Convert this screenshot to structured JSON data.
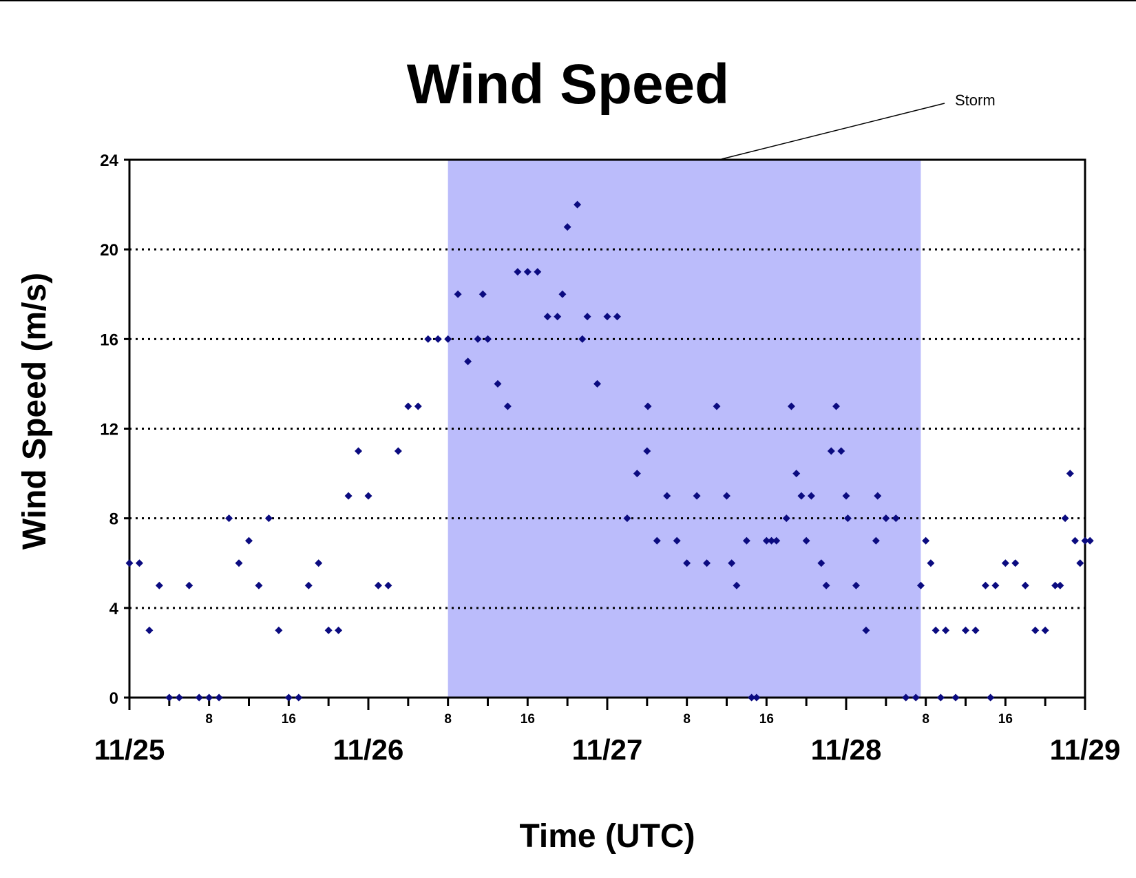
{
  "chart_data": {
    "type": "scatter",
    "title": "Wind Speed",
    "xlabel": "Time (UTC)",
    "ylabel": "Wind Speed (m/s)",
    "x_unit": "hour",
    "xlim": [
      "11/25 00:00",
      "11/29 00:00"
    ],
    "ylim": [
      0,
      24
    ],
    "yticks": [
      0,
      4,
      8,
      12,
      16,
      20,
      24
    ],
    "grid": "dotted horizontal",
    "day_ticks": [
      {
        "label": "11/25",
        "hour": "11/25 00:00"
      },
      {
        "label": "11/26",
        "hour": "11/26 00:00"
      },
      {
        "label": "11/27",
        "hour": "11/27 00:00"
      },
      {
        "label": "11/28",
        "hour": "11/28 00:00"
      },
      {
        "label": "11/29",
        "hour": "11/29 00:00"
      }
    ],
    "hour_ticks": [
      {
        "label": "8",
        "hour": "11/25 08:00"
      },
      {
        "label": "16",
        "hour": "11/25 16:00"
      },
      {
        "label": "8",
        "hour": "11/26 08:00"
      },
      {
        "label": "16",
        "hour": "11/26 16:00"
      },
      {
        "label": "8",
        "hour": "11/27 08:00"
      },
      {
        "label": "16",
        "hour": "11/27 16:00"
      },
      {
        "label": "8",
        "hour": "11/28 08:00"
      },
      {
        "label": "16",
        "hour": "11/28 16:00"
      }
    ],
    "storm_period": {
      "label": "Storm",
      "start": "11/26 08:00",
      "end": "11/28 07:30",
      "color": "#bbbcfb"
    },
    "marker_color": "#0b0b80",
    "series": [
      {
        "points": [
          [
            "11/25 00:00",
            6
          ],
          [
            "11/25 01:00",
            6
          ],
          [
            "11/25 02:00",
            3
          ],
          [
            "11/25 03:00",
            5
          ],
          [
            "11/25 04:00",
            0
          ],
          [
            "11/25 05:00",
            0
          ],
          [
            "11/25 06:00",
            5
          ],
          [
            "11/25 07:00",
            0
          ],
          [
            "11/25 08:00",
            0
          ],
          [
            "11/25 09:00",
            0
          ],
          [
            "11/25 10:00",
            8
          ],
          [
            "11/25 11:00",
            6
          ],
          [
            "11/25 12:00",
            7
          ],
          [
            "11/25 13:00",
            5
          ],
          [
            "11/25 14:00",
            8
          ],
          [
            "11/25 15:00",
            3
          ],
          [
            "11/25 16:00",
            0
          ],
          [
            "11/25 17:00",
            0
          ],
          [
            "11/25 18:00",
            5
          ],
          [
            "11/25 19:00",
            6
          ],
          [
            "11/25 20:00",
            3
          ],
          [
            "11/25 21:00",
            3
          ],
          [
            "11/25 22:00",
            9
          ],
          [
            "11/25 23:00",
            11
          ],
          [
            "11/26 00:00",
            9
          ],
          [
            "11/26 01:00",
            5
          ],
          [
            "11/26 02:00",
            5
          ],
          [
            "11/26 03:00",
            11
          ],
          [
            "11/26 04:00",
            13
          ],
          [
            "11/26 05:00",
            13
          ],
          [
            "11/26 06:00",
            16
          ],
          [
            "11/26 07:00",
            16
          ],
          [
            "11/26 08:00",
            16
          ],
          [
            "11/26 09:00",
            18
          ],
          [
            "11/26 10:00",
            15
          ],
          [
            "11/26 11:00",
            16
          ],
          [
            "11/26 11:30",
            18
          ],
          [
            "11/26 12:00",
            16
          ],
          [
            "11/26 13:00",
            14
          ],
          [
            "11/26 14:00",
            13
          ],
          [
            "11/26 15:00",
            19
          ],
          [
            "11/26 16:00",
            19
          ],
          [
            "11/26 17:00",
            19
          ],
          [
            "11/26 18:00",
            17
          ],
          [
            "11/26 19:00",
            17
          ],
          [
            "11/26 19:30",
            18
          ],
          [
            "11/26 20:00",
            21
          ],
          [
            "11/26 21:00",
            22
          ],
          [
            "11/26 21:30",
            16
          ],
          [
            "11/26 22:00",
            17
          ],
          [
            "11/26 23:00",
            14
          ],
          [
            "11/27 00:00",
            17
          ],
          [
            "11/27 01:00",
            17
          ],
          [
            "11/27 02:00",
            8
          ],
          [
            "11/27 03:00",
            10
          ],
          [
            "11/27 04:00",
            11
          ],
          [
            "11/27 04:05",
            13
          ],
          [
            "11/27 05:00",
            7
          ],
          [
            "11/27 06:00",
            9
          ],
          [
            "11/27 07:00",
            7
          ],
          [
            "11/27 08:00",
            6
          ],
          [
            "11/27 09:00",
            9
          ],
          [
            "11/27 10:00",
            6
          ],
          [
            "11/27 11:00",
            13
          ],
          [
            "11/27 12:00",
            9
          ],
          [
            "11/27 12:30",
            6
          ],
          [
            "11/27 13:00",
            5
          ],
          [
            "11/27 14:00",
            7
          ],
          [
            "11/27 14:30",
            0
          ],
          [
            "11/27 15:00",
            0
          ],
          [
            "11/27 16:00",
            7
          ],
          [
            "11/27 16:30",
            7
          ],
          [
            "11/27 17:00",
            7
          ],
          [
            "11/27 18:00",
            8
          ],
          [
            "11/27 18:30",
            13
          ],
          [
            "11/27 19:00",
            10
          ],
          [
            "11/27 19:30",
            9
          ],
          [
            "11/27 20:00",
            7
          ],
          [
            "11/27 20:30",
            9
          ],
          [
            "11/27 21:30",
            6
          ],
          [
            "11/27 22:00",
            5
          ],
          [
            "11/27 22:30",
            11
          ],
          [
            "11/27 23:00",
            13
          ],
          [
            "11/27 23:30",
            11
          ],
          [
            "11/28 00:00",
            9
          ],
          [
            "11/28 00:10",
            8
          ],
          [
            "11/28 01:00",
            5
          ],
          [
            "11/28 02:00",
            3
          ],
          [
            "11/28 03:00",
            7
          ],
          [
            "11/28 03:10",
            9
          ],
          [
            "11/28 04:00",
            8
          ],
          [
            "11/28 05:00",
            8
          ],
          [
            "11/28 06:00",
            0
          ],
          [
            "11/28 07:00",
            0
          ],
          [
            "11/28 07:30",
            5
          ],
          [
            "11/28 08:00",
            7
          ],
          [
            "11/28 08:30",
            6
          ],
          [
            "11/28 09:00",
            3
          ],
          [
            "11/28 09:30",
            0
          ],
          [
            "11/28 10:00",
            3
          ],
          [
            "11/28 11:00",
            0
          ],
          [
            "11/28 12:00",
            3
          ],
          [
            "11/28 13:00",
            3
          ],
          [
            "11/28 14:00",
            5
          ],
          [
            "11/28 14:30",
            0
          ],
          [
            "11/28 15:00",
            5
          ],
          [
            "11/28 16:00",
            6
          ],
          [
            "11/28 17:00",
            6
          ],
          [
            "11/28 18:00",
            5
          ],
          [
            "11/28 19:00",
            3
          ],
          [
            "11/28 20:00",
            3
          ],
          [
            "11/28 21:00",
            5
          ],
          [
            "11/28 21:30",
            5
          ],
          [
            "11/28 22:00",
            8
          ],
          [
            "11/28 22:30",
            10
          ],
          [
            "11/28 23:00",
            7
          ],
          [
            "11/28 23:30",
            6
          ],
          [
            "11/29 00:00",
            7
          ],
          [
            "11/29 00:30",
            7
          ]
        ]
      }
    ]
  }
}
